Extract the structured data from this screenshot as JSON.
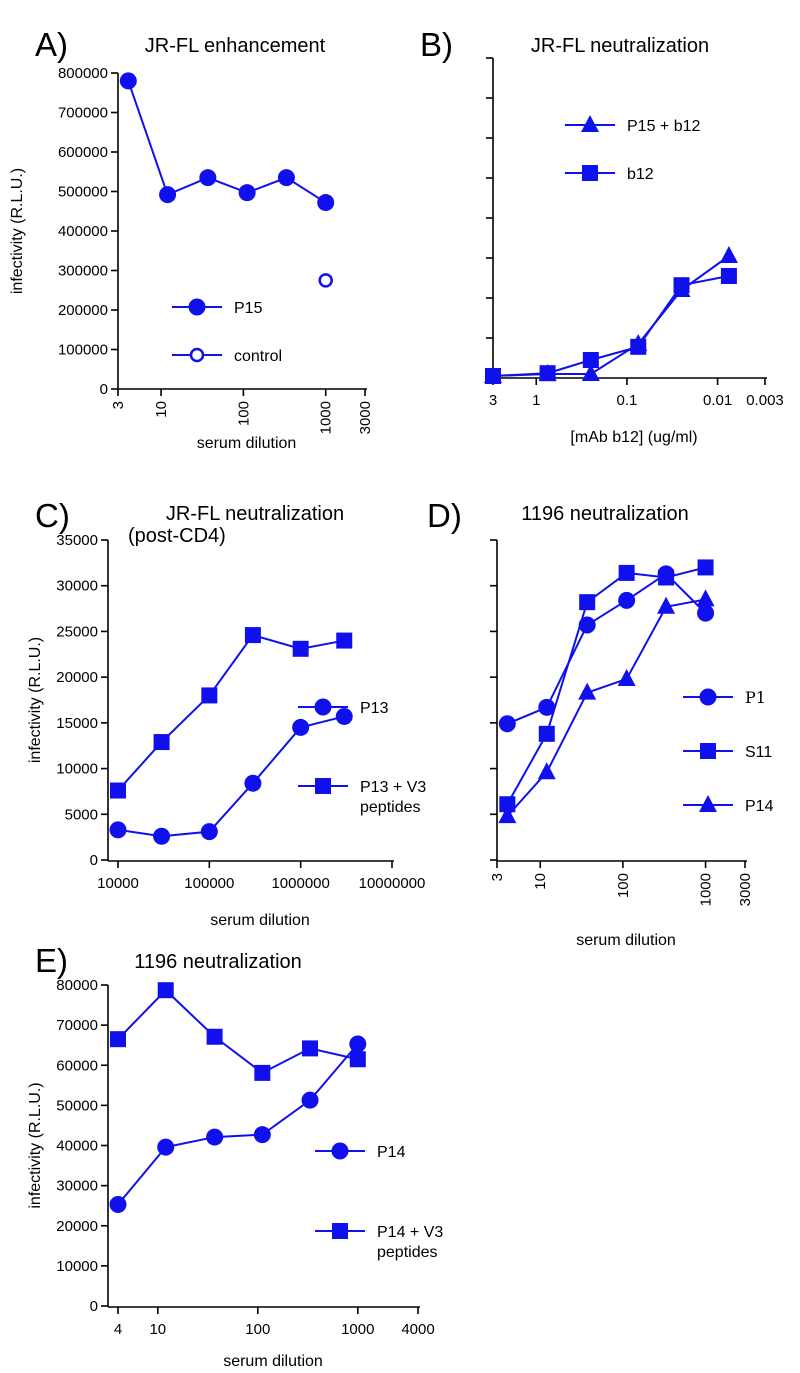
{
  "figure": {
    "marker_color": "#1010ee",
    "axis_color": "#000000",
    "text_color": "#000000"
  },
  "chart_data": [
    {
      "id": "A",
      "type": "line",
      "panel_letter": "A)",
      "title": "JR-FL enhancement",
      "xlabel": "serum dilution",
      "ylabel": "infectivity (R.L.U.)",
      "xscale": "log",
      "xlim": [
        3,
        3000
      ],
      "ylim": [
        0,
        800000
      ],
      "x_ticks": [
        3,
        10,
        100,
        1000,
        3000
      ],
      "x_tick_labels": [
        "3",
        "10",
        "100",
        "1000",
        "3000"
      ],
      "x_tick_rotated": true,
      "y_ticks": [
        0,
        100000,
        200000,
        300000,
        400000,
        500000,
        600000,
        700000,
        800000
      ],
      "y_tick_labels": [
        "0",
        "100000",
        "200000",
        "300000",
        "400000",
        "500000",
        "600000",
        "700000",
        "800000"
      ],
      "legend_position": "bottom-left",
      "series": [
        {
          "name": "P15",
          "marker": "circle",
          "line": true,
          "x": [
            4,
            12,
            37,
            111,
            333,
            1000
          ],
          "y": [
            780000,
            492000,
            535000,
            497000,
            535000,
            472000
          ]
        },
        {
          "name": "control",
          "marker": "circle-open",
          "line": false,
          "x": [
            1000
          ],
          "y": [
            275000
          ]
        }
      ]
    },
    {
      "id": "B",
      "type": "line",
      "panel_letter": "B)",
      "title": "JR-FL neutralization",
      "xlabel": "[mAb b12] (ug/ml)",
      "ylabel": "",
      "xscale": "log-reversed",
      "xlim": [
        3,
        0.003
      ],
      "ylim": [
        0,
        800000
      ],
      "x_ticks": [
        3,
        1,
        0.1,
        0.01,
        0.003
      ],
      "x_tick_labels": [
        "3",
        "1",
        "0.1",
        "0.01",
        "0.003"
      ],
      "x_tick_rotated": false,
      "y_ticks": [
        0,
        100000,
        200000,
        300000,
        400000,
        500000,
        600000,
        700000,
        800000
      ],
      "y_tick_labels": [],
      "legend_position": "top-left",
      "series": [
        {
          "name": "P15 + b12",
          "marker": "triangle",
          "line": true,
          "x": [
            3,
            0.75,
            0.25,
            0.075,
            0.025,
            0.0075
          ],
          "y": [
            5000,
            10000,
            10000,
            85000,
            220000,
            305000
          ]
        },
        {
          "name": "b12",
          "marker": "square",
          "line": true,
          "x": [
            3,
            0.75,
            0.25,
            0.075,
            0.025,
            0.0075
          ],
          "y": [
            5000,
            12000,
            45000,
            78000,
            232000,
            255000
          ]
        }
      ]
    },
    {
      "id": "C",
      "type": "line",
      "panel_letter": "C)",
      "title": "JR-FL neutralization",
      "subtitle": "(post-CD4)",
      "xlabel": "serum dilution",
      "ylabel": "infectivity (R.L.U.)",
      "xscale": "log",
      "xlim": [
        10000,
        10000000
      ],
      "ylim": [
        0,
        35000
      ],
      "x_ticks": [
        10000,
        100000,
        1000000,
        10000000
      ],
      "x_tick_labels": [
        "10000",
        "100000",
        "1000000",
        "10000000"
      ],
      "x_tick_rotated": false,
      "y_ticks": [
        0,
        5000,
        10000,
        15000,
        20000,
        25000,
        30000,
        35000
      ],
      "y_tick_labels": [
        "0",
        "5000",
        "10000",
        "15000",
        "20000",
        "25000",
        "30000",
        "35000"
      ],
      "legend_position": "right",
      "series": [
        {
          "name": "P13",
          "marker": "circle",
          "line": true,
          "x": [
            10000,
            30000,
            100000,
            300000,
            1000000,
            3000000
          ],
          "y": [
            3300,
            2600,
            3100,
            8400,
            14500,
            15700
          ]
        },
        {
          "name": "P13 + V3 peptides",
          "label_lines": [
            "P13 + V3",
            "peptides"
          ],
          "marker": "square",
          "line": true,
          "x": [
            10000,
            30000,
            100000,
            300000,
            1000000,
            3000000
          ],
          "y": [
            7600,
            12900,
            18000,
            24600,
            23100,
            24000
          ]
        }
      ]
    },
    {
      "id": "D",
      "type": "line",
      "panel_letter": "D)",
      "title": "1196 neutralization",
      "xlabel": "serum dilution",
      "ylabel": "",
      "xscale": "log",
      "xlim": [
        3,
        3000
      ],
      "ylim": [
        0,
        35000
      ],
      "x_ticks": [
        3,
        10,
        100,
        1000,
        3000
      ],
      "x_tick_labels": [
        "3",
        "10",
        "100",
        "1000",
        "3000"
      ],
      "x_tick_rotated": true,
      "y_ticks": [
        0,
        5000,
        10000,
        15000,
        20000,
        25000,
        30000,
        35000
      ],
      "y_tick_labels": [],
      "legend_position": "right",
      "series": [
        {
          "name": "P1",
          "marker": "circle",
          "line": true,
          "serif_label": true,
          "x": [
            4,
            12,
            37,
            111,
            333,
            1000
          ],
          "y": [
            14900,
            16700,
            25700,
            28400,
            31300,
            27000
          ]
        },
        {
          "name": "S11",
          "marker": "square",
          "line": true,
          "x": [
            4,
            12,
            37,
            111,
            333,
            1000
          ],
          "y": [
            6100,
            13800,
            28200,
            31400,
            30900,
            32000
          ]
        },
        {
          "name": "P14",
          "marker": "triangle",
          "line": true,
          "x": [
            4,
            12,
            37,
            111,
            333,
            1000
          ],
          "y": [
            4800,
            9600,
            18300,
            19800,
            27700,
            28500
          ]
        }
      ]
    },
    {
      "id": "E",
      "type": "line",
      "panel_letter": "E)",
      "title": "1196 neutralization",
      "xlabel": "serum dilution",
      "ylabel": "infectivity (R.L.U.)",
      "xscale": "log",
      "xlim": [
        4,
        4000
      ],
      "ylim": [
        0,
        80000
      ],
      "x_ticks": [
        4,
        10,
        100,
        1000,
        4000
      ],
      "x_tick_labels": [
        "4",
        "10",
        "100",
        "1000",
        "4000"
      ],
      "x_tick_rotated": false,
      "y_ticks": [
        0,
        10000,
        20000,
        30000,
        40000,
        50000,
        60000,
        70000,
        80000
      ],
      "y_tick_labels": [
        "0",
        "10000",
        "20000",
        "30000",
        "40000",
        "50000",
        "60000",
        "70000",
        "80000"
      ],
      "legend_position": "right",
      "series": [
        {
          "name": "P14",
          "marker": "circle",
          "line": true,
          "x": [
            4,
            12,
            37,
            111,
            333,
            1000
          ],
          "y": [
            25300,
            39600,
            42100,
            42700,
            51300,
            65300
          ]
        },
        {
          "name": "P14 + V3 peptides",
          "label_lines": [
            "P14 + V3",
            "peptides"
          ],
          "marker": "square",
          "line": true,
          "x": [
            4,
            12,
            37,
            111,
            333,
            1000
          ],
          "y": [
            66500,
            78700,
            67100,
            58100,
            64200,
            61500
          ]
        }
      ]
    }
  ]
}
